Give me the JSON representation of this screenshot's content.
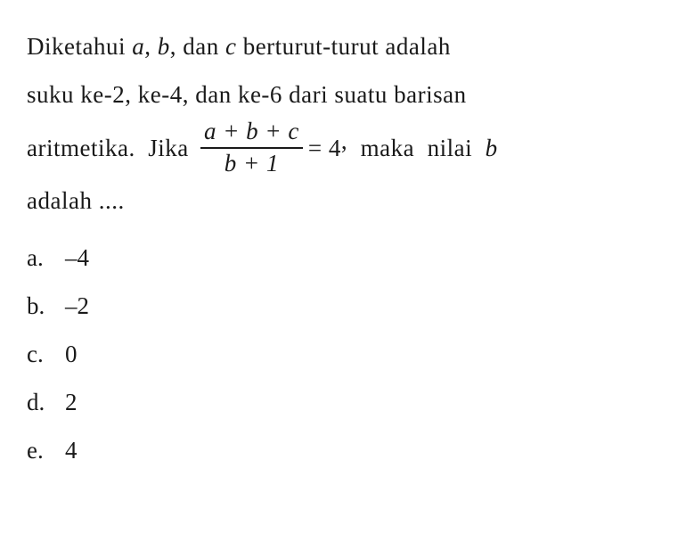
{
  "text_color": "#1a1a1a",
  "background_color": "#ffffff",
  "font_family": "Times New Roman",
  "question": {
    "line1_part1": "Diketahui ",
    "line1_var_a": "a",
    "line1_sep1": ", ",
    "line1_var_b": "b",
    "line1_sep2": ", dan ",
    "line1_var_c": "c",
    "line1_part2": " berturut-turut adalah",
    "line2": "suku ke-2, ke-4, dan ke-6 dari suatu barisan",
    "line3_before": "aritmetika.  Jika ",
    "fraction": {
      "numerator": "a + b + c",
      "denominator": "b + 1"
    },
    "line3_equals": " = 4",
    "line3_comma": ",",
    "line3_after": "  maka  nilai  ",
    "line3_var_b": "b",
    "line4": "adalah ...."
  },
  "options": [
    {
      "label": "a.",
      "value": "–4"
    },
    {
      "label": "b.",
      "value": "–2"
    },
    {
      "label": "c.",
      "value": "0"
    },
    {
      "label": "d.",
      "value": "2"
    },
    {
      "label": "e.",
      "value": "4"
    }
  ]
}
